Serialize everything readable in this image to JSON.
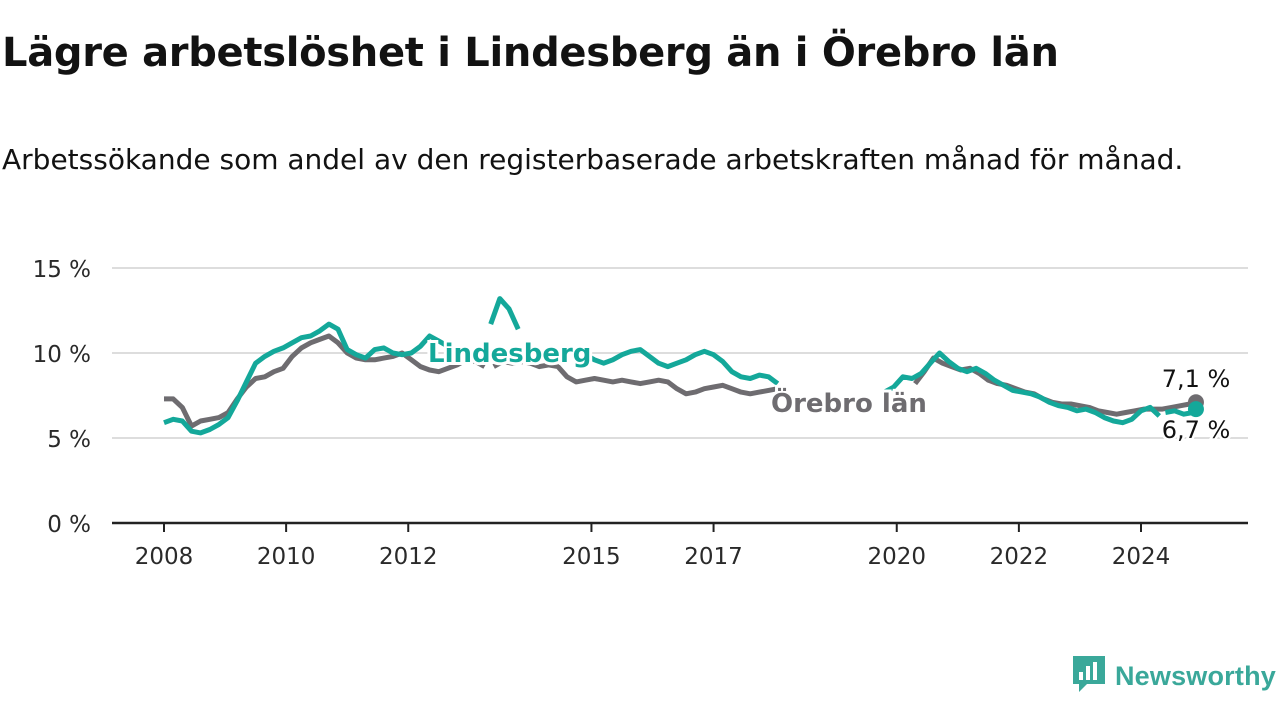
{
  "header": {
    "title": "Lägre arbetslöshet i Lindesberg än i Örebro län",
    "subtitle": "Arbetssökande som andel av den registerbaserade arbetskraften månad för månad."
  },
  "brand": {
    "name": "Newsworthy",
    "icon": "newsworthy-logo-icon"
  },
  "colors": {
    "lindesberg": "#14a89a",
    "orebro": "#6e6c70",
    "grid": "#dddddd",
    "axis": "#222222",
    "brand": "#3aa89a"
  },
  "chart_data": {
    "type": "line",
    "ylim": [
      0,
      15
    ],
    "yticks": [
      {
        "value": 0,
        "label": "0 %"
      },
      {
        "value": 5,
        "label": "5 %"
      },
      {
        "value": 10,
        "label": "10 %"
      },
      {
        "value": 15,
        "label": "15 %"
      }
    ],
    "xlim": [
      2007.8,
      2025.8
    ],
    "xticks": [
      {
        "value": 2008,
        "label": "2008"
      },
      {
        "value": 2010,
        "label": "2010"
      },
      {
        "value": 2012,
        "label": "2012"
      },
      {
        "value": 2015,
        "label": "2015"
      },
      {
        "value": 2017,
        "label": "2017"
      },
      {
        "value": 2020,
        "label": "2020"
      },
      {
        "value": 2022,
        "label": "2022"
      },
      {
        "value": 2024,
        "label": "2024"
      }
    ],
    "grid": true,
    "series": [
      {
        "name": "Örebro län",
        "color": "#6e6c70",
        "end_label": "7,1 %",
        "segments": [
          [
            [
              2008.0,
              7.3
            ],
            [
              2008.15,
              7.3
            ],
            [
              2008.3,
              6.8
            ],
            [
              2008.45,
              5.7
            ],
            [
              2008.6,
              6.0
            ],
            [
              2008.75,
              6.1
            ],
            [
              2008.9,
              6.2
            ],
            [
              2009.05,
              6.5
            ],
            [
              2009.2,
              7.3
            ],
            [
              2009.35,
              8.0
            ],
            [
              2009.5,
              8.5
            ],
            [
              2009.65,
              8.6
            ],
            [
              2009.8,
              8.9
            ],
            [
              2009.95,
              9.1
            ],
            [
              2010.1,
              9.8
            ],
            [
              2010.25,
              10.3
            ],
            [
              2010.4,
              10.6
            ],
            [
              2010.55,
              10.8
            ],
            [
              2010.7,
              11.0
            ],
            [
              2010.85,
              10.6
            ],
            [
              2011.0,
              10.0
            ],
            [
              2011.15,
              9.7
            ],
            [
              2011.3,
              9.6
            ],
            [
              2011.45,
              9.6
            ],
            [
              2011.6,
              9.7
            ],
            [
              2011.75,
              9.8
            ],
            [
              2011.9,
              10.0
            ],
            [
              2012.05,
              9.6
            ],
            [
              2012.2,
              9.2
            ],
            [
              2012.35,
              9.0
            ],
            [
              2012.5,
              8.9
            ],
            [
              2012.65,
              9.1
            ],
            [
              2012.8,
              9.3
            ],
            [
              2012.95,
              9.6
            ],
            [
              2013.1,
              9.5
            ],
            [
              2013.25,
              9.2
            ]
          ],
          [
            [
              2013.4,
              9.2
            ],
            [
              2013.55,
              9.5
            ],
            [
              2013.7,
              9.4
            ],
            [
              2013.85,
              9.5
            ],
            [
              2014.0,
              9.4
            ],
            [
              2014.15,
              9.2
            ],
            [
              2014.3,
              9.3
            ],
            [
              2014.45,
              9.2
            ],
            [
              2014.6,
              8.6
            ],
            [
              2014.75,
              8.3
            ],
            [
              2014.9,
              8.4
            ],
            [
              2015.05,
              8.5
            ],
            [
              2015.2,
              8.4
            ],
            [
              2015.35,
              8.3
            ],
            [
              2015.5,
              8.4
            ],
            [
              2015.65,
              8.3
            ],
            [
              2015.8,
              8.2
            ],
            [
              2015.95,
              8.3
            ],
            [
              2016.1,
              8.4
            ],
            [
              2016.25,
              8.3
            ],
            [
              2016.4,
              7.9
            ],
            [
              2016.55,
              7.6
            ],
            [
              2016.7,
              7.7
            ],
            [
              2016.85,
              7.9
            ],
            [
              2017.0,
              8.0
            ],
            [
              2017.15,
              8.1
            ],
            [
              2017.3,
              7.9
            ],
            [
              2017.45,
              7.7
            ],
            [
              2017.6,
              7.6
            ],
            [
              2017.75,
              7.7
            ],
            [
              2017.9,
              7.8
            ],
            [
              2018.05,
              7.9
            ]
          ],
          [
            [
              2020.3,
              8.2
            ],
            [
              2020.45,
              8.9
            ],
            [
              2020.6,
              9.7
            ],
            [
              2020.75,
              9.4
            ],
            [
              2020.9,
              9.2
            ],
            [
              2021.05,
              9.0
            ],
            [
              2021.2,
              9.1
            ],
            [
              2021.35,
              8.8
            ],
            [
              2021.5,
              8.4
            ],
            [
              2021.65,
              8.2
            ],
            [
              2021.8,
              8.1
            ],
            [
              2021.95,
              7.9
            ],
            [
              2022.1,
              7.7
            ],
            [
              2022.25,
              7.6
            ],
            [
              2022.4,
              7.3
            ],
            [
              2022.55,
              7.1
            ],
            [
              2022.7,
              7.0
            ],
            [
              2022.85,
              7.0
            ],
            [
              2023.0,
              6.9
            ],
            [
              2023.15,
              6.8
            ],
            [
              2023.3,
              6.6
            ],
            [
              2023.45,
              6.5
            ],
            [
              2023.6,
              6.4
            ],
            [
              2023.75,
              6.5
            ],
            [
              2023.9,
              6.6
            ],
            [
              2024.05,
              6.7
            ],
            [
              2024.2,
              6.7
            ],
            [
              2024.35,
              6.7
            ],
            [
              2024.5,
              6.8
            ],
            [
              2024.65,
              6.9
            ],
            [
              2024.8,
              7.0
            ],
            [
              2024.9,
              7.1
            ]
          ]
        ]
      },
      {
        "name": "Lindesberg",
        "color": "#14a89a",
        "end_label": "6,7 %",
        "segments": [
          [
            [
              2008.0,
              5.9
            ],
            [
              2008.15,
              6.1
            ],
            [
              2008.3,
              6.0
            ],
            [
              2008.45,
              5.4
            ],
            [
              2008.6,
              5.3
            ],
            [
              2008.75,
              5.5
            ],
            [
              2008.9,
              5.8
            ],
            [
              2009.05,
              6.2
            ],
            [
              2009.2,
              7.2
            ],
            [
              2009.35,
              8.3
            ],
            [
              2009.5,
              9.4
            ],
            [
              2009.65,
              9.8
            ],
            [
              2009.8,
              10.1
            ],
            [
              2009.95,
              10.3
            ],
            [
              2010.1,
              10.6
            ],
            [
              2010.25,
              10.9
            ],
            [
              2010.4,
              11.0
            ],
            [
              2010.55,
              11.3
            ],
            [
              2010.7,
              11.7
            ],
            [
              2010.85,
              11.4
            ],
            [
              2011.0,
              10.2
            ],
            [
              2011.15,
              9.9
            ],
            [
              2011.3,
              9.7
            ],
            [
              2011.45,
              10.2
            ],
            [
              2011.6,
              10.3
            ],
            [
              2011.75,
              10.0
            ],
            [
              2011.9,
              9.9
            ],
            [
              2012.05,
              10.0
            ],
            [
              2012.2,
              10.4
            ],
            [
              2012.35,
              11.0
            ],
            [
              2012.5,
              10.7
            ],
            [
              2012.65,
              10.4
            ],
            [
              2012.8,
              10.1
            ]
          ],
          [
            [
              2013.35,
              11.7
            ],
            [
              2013.5,
              13.2
            ],
            [
              2013.65,
              12.6
            ],
            [
              2013.8,
              11.4
            ]
          ],
          [
            [
              2014.9,
              9.9
            ],
            [
              2015.05,
              9.6
            ],
            [
              2015.2,
              9.4
            ],
            [
              2015.35,
              9.6
            ],
            [
              2015.5,
              9.9
            ],
            [
              2015.65,
              10.1
            ],
            [
              2015.8,
              10.2
            ],
            [
              2015.95,
              9.8
            ],
            [
              2016.1,
              9.4
            ],
            [
              2016.25,
              9.2
            ],
            [
              2016.4,
              9.4
            ],
            [
              2016.55,
              9.6
            ],
            [
              2016.7,
              9.9
            ],
            [
              2016.85,
              10.1
            ],
            [
              2017.0,
              9.9
            ],
            [
              2017.15,
              9.5
            ],
            [
              2017.3,
              8.9
            ],
            [
              2017.45,
              8.6
            ],
            [
              2017.6,
              8.5
            ],
            [
              2017.75,
              8.7
            ],
            [
              2017.9,
              8.6
            ],
            [
              2018.05,
              8.2
            ]
          ],
          [
            [
              2019.8,
              7.7
            ],
            [
              2019.95,
              8.0
            ],
            [
              2020.1,
              8.6
            ],
            [
              2020.25,
              8.5
            ],
            [
              2020.4,
              8.8
            ],
            [
              2020.55,
              9.4
            ],
            [
              2020.7,
              10.0
            ],
            [
              2020.85,
              9.5
            ],
            [
              2021.0,
              9.1
            ],
            [
              2021.15,
              8.9
            ],
            [
              2021.3,
              9.1
            ],
            [
              2021.45,
              8.8
            ],
            [
              2021.6,
              8.4
            ],
            [
              2021.75,
              8.1
            ],
            [
              2021.9,
              7.8
            ],
            [
              2022.05,
              7.7
            ],
            [
              2022.2,
              7.6
            ],
            [
              2022.35,
              7.4
            ],
            [
              2022.5,
              7.1
            ],
            [
              2022.65,
              6.9
            ],
            [
              2022.8,
              6.8
            ],
            [
              2022.95,
              6.6
            ],
            [
              2023.1,
              6.7
            ],
            [
              2023.25,
              6.5
            ],
            [
              2023.4,
              6.2
            ],
            [
              2023.55,
              6.0
            ],
            [
              2023.7,
              5.9
            ],
            [
              2023.85,
              6.1
            ],
            [
              2024.0,
              6.6
            ],
            [
              2024.15,
              6.8
            ],
            [
              2024.3,
              6.3
            ]
          ],
          [
            [
              2024.4,
              6.5
            ],
            [
              2024.55,
              6.6
            ],
            [
              2024.7,
              6.4
            ],
            [
              2024.85,
              6.5
            ],
            [
              2024.9,
              6.7
            ]
          ]
        ]
      }
    ],
    "annotations": {
      "lindesberg_label": "Lindesberg",
      "orebro_label": "Örebro län"
    }
  }
}
